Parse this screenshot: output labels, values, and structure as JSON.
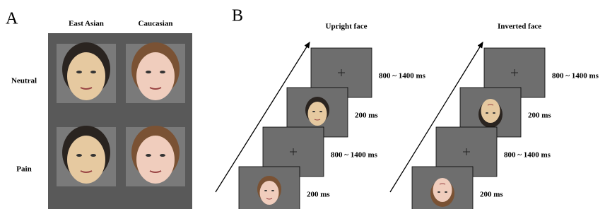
{
  "panel_a": {
    "label": "A",
    "columns": [
      "East Asian",
      "Caucasian"
    ],
    "rows": [
      "Neutral",
      "Pain"
    ]
  },
  "panel_b": {
    "label": "B",
    "sequences": [
      {
        "title": "Upright face",
        "steps": [
          "800 ~ 1400 ms",
          "200 ms",
          "800 ~ 1400 ms",
          "200 ms"
        ]
      },
      {
        "title": "Inverted face",
        "steps": [
          "800 ~ 1400 ms",
          "200 ms",
          "800 ~ 1400 ms",
          "200 ms"
        ]
      }
    ]
  }
}
